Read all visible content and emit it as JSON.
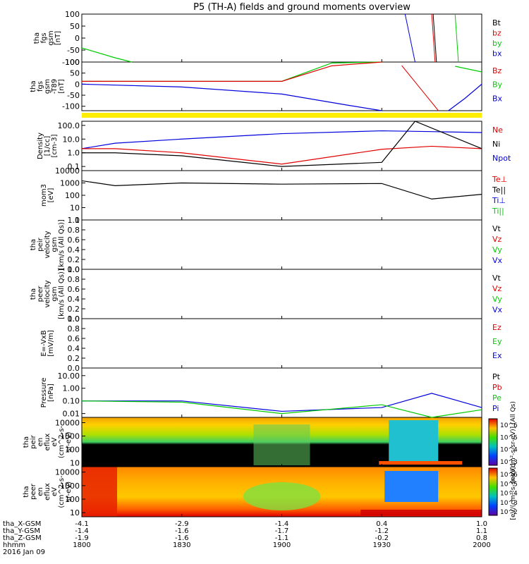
{
  "title": "P5 (TH-A) fields and ground moments overview",
  "colors": {
    "black": "#000000",
    "red": "#e00000",
    "green": "#00cc00",
    "blue": "#0000dd",
    "yellow": "#ffee00"
  },
  "panels": [
    {
      "id": "fgs-gsm",
      "ylabel_lines": [
        "tha",
        "fgs",
        "gsm",
        "[nT]"
      ],
      "ticks": [
        "100",
        "50",
        "0",
        "-50",
        "-100"
      ],
      "tick_vals": [
        100,
        50,
        0,
        -50,
        -100
      ],
      "log": false,
      "ymin": -100,
      "ymax": 100,
      "legend": [
        {
          "text": "Bt",
          "color": "black"
        },
        {
          "text": "bz",
          "color": "red"
        },
        {
          "text": "by",
          "color": "green"
        },
        {
          "text": "bx",
          "color": "blue"
        }
      ]
    },
    {
      "id": "fgs-gsm-t89",
      "ylabel_lines": [
        "tha",
        "fgs",
        "gsm",
        "-T89",
        "[nT]"
      ],
      "ticks": [
        "100",
        "50",
        "0",
        "-50",
        "-100"
      ],
      "tick_vals": [
        100,
        50,
        0,
        -50,
        -100
      ],
      "log": false,
      "ymin": -120,
      "ymax": 100,
      "legend": [
        {
          "text": "Bz",
          "color": "red"
        },
        {
          "text": "By",
          "color": "green"
        },
        {
          "text": "Bx",
          "color": "blue"
        }
      ]
    },
    {
      "id": "density",
      "ylabel_lines": [
        "Density",
        "[1/cc]",
        "[cm-3]"
      ],
      "ticks": [
        "100.0",
        "10.0",
        "1.0",
        "0.1"
      ],
      "tick_vals": [
        100,
        10,
        1,
        0.1
      ],
      "log": true,
      "ymin": 0.05,
      "ymax": 200,
      "legend": [
        {
          "text": "Ne",
          "color": "red"
        },
        {
          "text": "Ni",
          "color": "black"
        },
        {
          "text": "Npot",
          "color": "blue"
        }
      ]
    },
    {
      "id": "temperature",
      "ylabel_lines": [
        "mom3",
        "[eV]"
      ],
      "ticks": [
        "10000",
        "1000",
        "100",
        "10",
        "1"
      ],
      "tick_vals": [
        10000,
        1000,
        100,
        10,
        1
      ],
      "log": true,
      "ymin": 1,
      "ymax": 10000,
      "legend": [
        {
          "text": "Te⊥",
          "color": "red"
        },
        {
          "text": "Te||",
          "color": "black"
        },
        {
          "text": "Ti⊥",
          "color": "blue"
        },
        {
          "text": "Ti||",
          "color": "green"
        }
      ]
    },
    {
      "id": "peir-velocity",
      "ylabel_lines": [
        "tha",
        "peir",
        "velocity",
        "gsm",
        "[km/s (All Qs)]"
      ],
      "ticks": [
        "1.0",
        "0.8",
        "0.6",
        "0.4",
        "0.2",
        "0.0"
      ],
      "tick_vals": [
        1,
        0.8,
        0.6,
        0.4,
        0.2,
        0
      ],
      "log": false,
      "ymin": 0,
      "ymax": 1,
      "legend": [
        {
          "text": "Vt",
          "color": "black"
        },
        {
          "text": "Vz",
          "color": "red"
        },
        {
          "text": "Vy",
          "color": "green"
        },
        {
          "text": "Vx",
          "color": "blue"
        }
      ]
    },
    {
      "id": "peer-velocity",
      "ylabel_lines": [
        "tha",
        "peer",
        "velocity",
        "gsm",
        "[km/s (All Qs)]"
      ],
      "ticks": [
        "1.0",
        "0.8",
        "0.6",
        "0.4",
        "0.2",
        "0.0"
      ],
      "tick_vals": [
        1,
        0.8,
        0.6,
        0.4,
        0.2,
        0
      ],
      "log": false,
      "ymin": 0,
      "ymax": 1,
      "legend": [
        {
          "text": "Vt",
          "color": "black"
        },
        {
          "text": "Vz",
          "color": "red"
        },
        {
          "text": "Vy",
          "color": "green"
        },
        {
          "text": "Vx",
          "color": "blue"
        }
      ]
    },
    {
      "id": "e-field",
      "ylabel_lines": [
        "E=-VxB",
        "[mV/m]"
      ],
      "ticks": [
        "1.0",
        "0.8",
        "0.6",
        "0.4",
        "0.2",
        "0.0"
      ],
      "tick_vals": [
        1,
        0.8,
        0.6,
        0.4,
        0.2,
        0
      ],
      "log": false,
      "ymin": 0,
      "ymax": 1,
      "legend": [
        {
          "text": "Ez",
          "color": "red"
        },
        {
          "text": "Ey",
          "color": "green"
        },
        {
          "text": "Ex",
          "color": "blue"
        }
      ]
    },
    {
      "id": "pressure",
      "ylabel_lines": [
        "Pressure",
        "[nPa]"
      ],
      "ticks": [
        "10.00",
        "1.00",
        "0.10",
        "0.01"
      ],
      "tick_vals": [
        10,
        1,
        0.1,
        0.01
      ],
      "log": true,
      "ymin": 0.005,
      "ymax": 40,
      "legend": [
        {
          "text": "Pt",
          "color": "black"
        },
        {
          "text": "Pb",
          "color": "red"
        },
        {
          "text": "Pe",
          "color": "green"
        },
        {
          "text": "Pi",
          "color": "blue"
        }
      ]
    },
    {
      "id": "peir-spec",
      "ylabel_lines": [
        "tha",
        "peir",
        "en",
        "eflux",
        "eV",
        "(cm^2-s-",
        "sr-eV)"
      ],
      "ticks": [
        "10000",
        "1000",
        "100",
        "10"
      ],
      "tick_vals": [
        10000,
        1000,
        100,
        10
      ],
      "log": true,
      "ymin": 5,
      "ymax": 25000,
      "legend": []
    },
    {
      "id": "peer-spec",
      "ylabel_lines": [
        "tha",
        "peer",
        "en",
        "eflux",
        "eV",
        "(cm^2-s-",
        "sr-eV)"
      ],
      "ticks": [
        "10000",
        "1000",
        "100",
        "10"
      ],
      "tick_vals": [
        10000,
        1000,
        100,
        10
      ],
      "log": true,
      "ymin": 5,
      "ymax": 25000,
      "legend": []
    }
  ],
  "colorbars": [
    {
      "labels": [
        "10^6",
        "10^5",
        "10^4",
        "10^3"
      ],
      "title": "[eV/(cm²-s-sr-eV)] (All Qs)"
    },
    {
      "labels": [
        "10^6",
        "10^5",
        "10^4",
        "10^3",
        "10^2"
      ],
      "title": "[eV/(cm²-s-sr-eV)]"
    }
  ],
  "footer": {
    "rows": [
      {
        "label": "tha_X-GSM",
        "values": [
          "-4.1",
          "-2.9",
          "-1.4",
          "0.4",
          "1.0"
        ]
      },
      {
        "label": "tha_Y-GSM",
        "values": [
          "-1.4",
          "-1.6",
          "-1.7",
          "-1.2",
          "1.1"
        ]
      },
      {
        "label": "tha_Z-GSM",
        "values": [
          "-1.9",
          "-1.6",
          "-1.1",
          "-0.2",
          "0.8"
        ]
      },
      {
        "label": "hhmm",
        "values": [
          "1800",
          "1830",
          "1900",
          "1930",
          "2000"
        ]
      }
    ],
    "date": "2016 Jan 09"
  },
  "chart_data": {
    "type": "line",
    "title": "P5 (TH-A) fields and ground moments overview",
    "x_time": [
      "1800",
      "1830",
      "1900",
      "1930",
      "2000"
    ],
    "series": [
      {
        "name": "Npot",
        "panel": "density",
        "x": [
          "1800",
          "1810",
          "1830",
          "1900",
          "1930",
          "1945",
          "2000"
        ],
        "values": [
          2,
          5,
          10,
          25,
          40,
          35,
          30
        ]
      },
      {
        "name": "Ne",
        "panel": "density",
        "x": [
          "1800",
          "1810",
          "1830",
          "1900",
          "1930",
          "1945",
          "2000"
        ],
        "values": [
          2,
          2,
          1,
          0.15,
          1.8,
          3,
          2
        ]
      },
      {
        "name": "Ni",
        "panel": "density",
        "x": [
          "1800",
          "1810",
          "1830",
          "1900",
          "1930",
          "1940",
          "2000"
        ],
        "values": [
          1,
          1,
          0.6,
          0.1,
          0.2,
          200,
          2
        ]
      },
      {
        "name": "Te||",
        "panel": "temperature",
        "x": [
          "1800",
          "1810",
          "1830",
          "1900",
          "1930",
          "1945",
          "2000"
        ],
        "values": [
          1500,
          600,
          1000,
          800,
          900,
          50,
          120
        ]
      },
      {
        "name": "Pi",
        "panel": "pressure",
        "x": [
          "1800",
          "1830",
          "1900",
          "1930",
          "1945",
          "2000"
        ],
        "values": [
          0.1,
          0.1,
          0.015,
          0.03,
          0.4,
          0.03
        ]
      },
      {
        "name": "Pe",
        "panel": "pressure",
        "x": [
          "1800",
          "1830",
          "1900",
          "1930",
          "1945",
          "2000"
        ],
        "values": [
          0.1,
          0.08,
          0.01,
          0.05,
          0.005,
          0.02
        ]
      }
    ]
  }
}
